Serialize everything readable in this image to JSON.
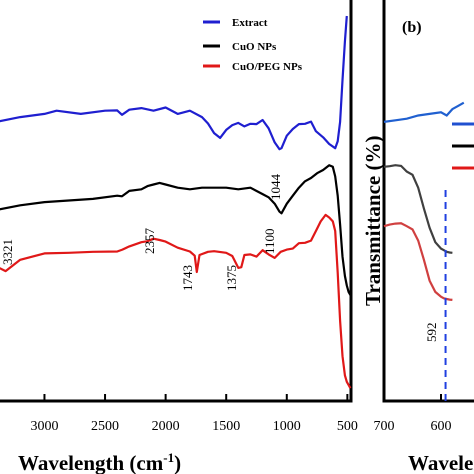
{
  "chart_data": [
    {
      "type": "line",
      "panel": "a",
      "title": "",
      "xlabel": "Wavelength (cm-1)",
      "ylabel": "",
      "xlim": [
        3400,
        470
      ],
      "x_reversed": true,
      "grid": false,
      "legend_position": "top-right",
      "xticks": [
        "3000",
        "2500",
        "2000",
        "1500",
        "1000",
        "500"
      ],
      "series": [
        {
          "name": "Extract",
          "color": "#1f1fd0",
          "x": [
            3400,
            3200,
            3000,
            2900,
            2700,
            2500,
            2400,
            2360,
            2300,
            2200,
            2100,
            2000,
            1900,
            1800,
            1700,
            1650,
            1600,
            1550,
            1500,
            1450,
            1400,
            1350,
            1300,
            1250,
            1200,
            1150,
            1100,
            1060,
            1044,
            1000,
            950,
            900,
            850,
            800,
            760,
            700,
            650,
            600,
            580,
            560,
            540,
            520,
            505
          ],
          "y": [
            67,
            68.5,
            69.5,
            70.5,
            69.5,
            70.5,
            70.6,
            69.2,
            70.8,
            71.3,
            70.5,
            71.5,
            69.5,
            70.5,
            68.5,
            66.5,
            63.5,
            62,
            64.5,
            66,
            66.7,
            65.6,
            66.4,
            66.3,
            67.6,
            65,
            60.6,
            58.5,
            58.8,
            62.7,
            64.8,
            66.3,
            66.4,
            67.1,
            64.1,
            62.2,
            60.1,
            58.8,
            61,
            67,
            80,
            92,
            100
          ]
        },
        {
          "name": "CuO NPs",
          "color": "#000000",
          "x": [
            3400,
            3200,
            3000,
            2800,
            2600,
            2400,
            2360,
            2300,
            2200,
            2150,
            2100,
            2050,
            2000,
            1900,
            1800,
            1700,
            1600,
            1500,
            1400,
            1300,
            1200,
            1150,
            1100,
            1060,
            1044,
            1000,
            950,
            900,
            850,
            800,
            750,
            700,
            650,
            620,
            600,
            580,
            560,
            540,
            520,
            505,
            490,
            475
          ],
          "y": [
            39.5,
            41,
            42,
            42.5,
            43,
            44,
            43.8,
            45.5,
            46,
            47,
            47.5,
            48,
            47.5,
            46.5,
            46,
            46.5,
            46.5,
            46.5,
            46,
            46.5,
            44.5,
            43.5,
            41.5,
            39,
            38.5,
            41.5,
            44,
            46.5,
            48.5,
            49.5,
            51,
            52,
            53.5,
            53,
            50,
            44,
            35,
            25,
            19,
            16,
            14,
            13
          ]
        },
        {
          "name": "CuO/PEG NPs",
          "color": "#e01818",
          "x": [
            3400,
            3321,
            3200,
            3000,
            2800,
            2600,
            2400,
            2357,
            2300,
            2200,
            2150,
            2100,
            2050,
            2000,
            1900,
            1800,
            1760,
            1743,
            1720,
            1650,
            1600,
            1500,
            1450,
            1400,
            1375,
            1350,
            1300,
            1250,
            1200,
            1150,
            1100,
            1050,
            1000,
            950,
            900,
            850,
            800,
            760,
            720,
            680,
            650,
            620,
            600,
            580,
            560,
            540,
            520,
            505,
            490,
            475
          ],
          "y": [
            22,
            20.5,
            24,
            26,
            26.2,
            26.5,
            26.6,
            27.2,
            28.2,
            29.5,
            29.8,
            30.6,
            30.2,
            29.7,
            27.8,
            26.6,
            25.3,
            20.2,
            25.5,
            26.5,
            26.7,
            26.2,
            25.2,
            21.5,
            21.7,
            25.5,
            25.7,
            25,
            27,
            25.7,
            24.6,
            26.5,
            27.2,
            27.5,
            29.2,
            29.3,
            30,
            33,
            36,
            38,
            37.2,
            36,
            33,
            20,
            5,
            -6,
            -12,
            -14,
            -15,
            -16
          ]
        }
      ],
      "annotations": [
        "3321",
        "2357",
        "1743",
        "1375",
        "1100",
        "1044"
      ]
    },
    {
      "type": "line",
      "panel": "b",
      "panel_label": "(b)",
      "title": "",
      "xlabel": "Wavelen",
      "ylabel": "Transmittance (%)",
      "xlim": [
        700,
        560
      ],
      "x_reversed": true,
      "grid": false,
      "xticks": [
        "700",
        "600"
      ],
      "series": [
        {
          "color": "#2060d0",
          "x": [
            700,
            680,
            660,
            640,
            620,
            600,
            590,
            580,
            570,
            560
          ],
          "y": [
            67,
            67.5,
            68,
            69,
            69.5,
            70,
            69,
            71,
            72,
            73
          ]
        },
        {
          "color": "#404040",
          "x": [
            700,
            690,
            680,
            670,
            660,
            650,
            640,
            630,
            620,
            610,
            600,
            595,
            590,
            585,
            580
          ],
          "y": [
            53,
            53.2,
            53.5,
            53.3,
            51.5,
            50.5,
            46.5,
            40,
            34,
            29.5,
            27.5,
            27,
            26.5,
            26.3,
            26.2
          ]
        },
        {
          "color": "#d04040",
          "x": [
            700,
            690,
            680,
            670,
            660,
            650,
            640,
            630,
            620,
            610,
            600,
            595,
            590,
            585,
            580
          ],
          "y": [
            34.5,
            35,
            35.3,
            35.4,
            34.5,
            33.5,
            30,
            24,
            17.5,
            14,
            12.5,
            12,
            11.8,
            11.6,
            11.5
          ]
        }
      ],
      "legend_markers": [
        "#2050d0",
        "#000000",
        "#e01818"
      ],
      "annotations": [
        "592"
      ],
      "marker_line": {
        "x": 592,
        "color": "#2040e0",
        "style": "dashed"
      }
    }
  ]
}
